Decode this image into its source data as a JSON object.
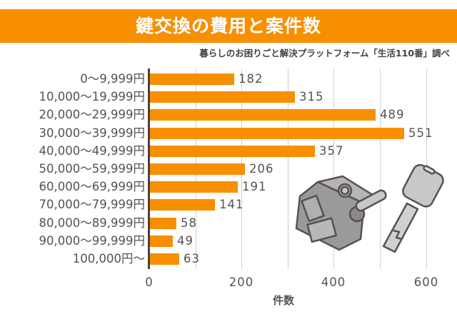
{
  "title": "鍵交換の費用と案件数",
  "source": "暮らしのお困りごと解決プラットフォーム「生活110番」調べ",
  "colors": {
    "banner": "#f78f00",
    "bar": "#f78f00",
    "axis": "#4a4040",
    "grid": "#d0d0d0"
  },
  "illustration": "lock-and-key-icon",
  "chart_data": {
    "type": "bar",
    "orientation": "horizontal",
    "title": "鍵交換の費用と案件数",
    "subtitle": "暮らしのお困りごと解決プラットフォーム「生活110番」調べ",
    "xlabel": "件数",
    "ylabel": "",
    "xlim": [
      0,
      600
    ],
    "xticks": [
      "0",
      "200",
      "400",
      "600"
    ],
    "grid": true,
    "gridlines_every": 100,
    "categories": [
      "0～9,999円",
      "10,000～19,999円",
      "20,000～29,999円",
      "30,000～39,999円",
      "40,000～49,999円",
      "50,000～59,999円",
      "60,000～69,999円",
      "70,000～79,999円",
      "80,000～89,999円",
      "90,000～99,999円",
      "100,000円～"
    ],
    "values": [
      182,
      315,
      489,
      551,
      357,
      206,
      191,
      141,
      58,
      49,
      63
    ],
    "value_labels": [
      "182",
      "315",
      "489",
      "551",
      "357",
      "206",
      "191",
      "141",
      "58",
      "49",
      "63"
    ]
  }
}
